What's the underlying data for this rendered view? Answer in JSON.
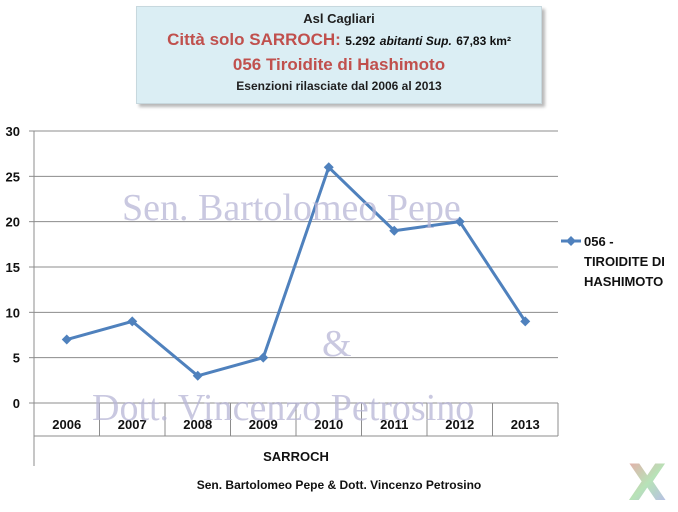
{
  "header": {
    "line1": "Asl Cagliari",
    "line2_city": "Città solo SARROCH:",
    "line2_pop": "5.292",
    "line2_abitanti": "abitanti Sup.",
    "line2_area": "67,83 km²",
    "line3": "056 Tiroidite di Hashimoto",
    "line4": "Esenzioni rilasciate dal 2006 al 2013"
  },
  "watermarks": {
    "top": "Sen. Bartolomeo Pepe",
    "amp": "&",
    "bottom": "Dott. Vincenzo Petrosino"
  },
  "footer": "Sen. Bartolomeo Pepe & Dott. Vincenzo Petrosino",
  "logo": "X",
  "chart_data": {
    "type": "line",
    "categories": [
      "2006",
      "2007",
      "2008",
      "2009",
      "2010",
      "2011",
      "2012",
      "2013"
    ],
    "series": [
      {
        "name": "056 - TIROIDITE DI HASHIMOTO",
        "values": [
          7,
          9,
          3,
          5,
          26,
          19,
          20,
          9
        ],
        "color": "#4f81bd"
      }
    ],
    "legend_lines": [
      "056 -",
      "TIROIDITE DI",
      "HASHIMOTO"
    ],
    "xlabel": "SARROCH",
    "ylabel": "",
    "ylim": [
      0,
      30
    ],
    "yticks": [
      0,
      5,
      10,
      15,
      20,
      25,
      30
    ],
    "grid": true,
    "legend_position": "right"
  }
}
